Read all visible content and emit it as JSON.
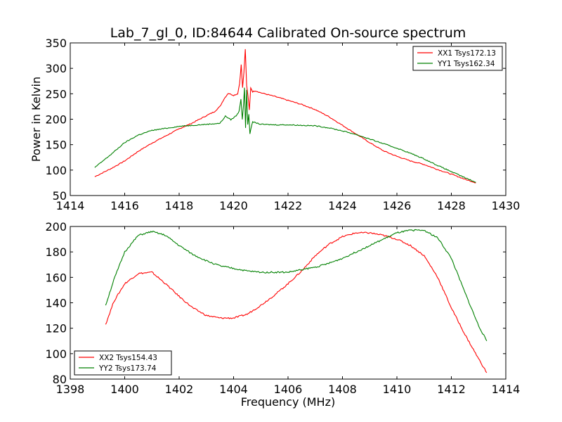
{
  "title": "Lab_7_gl_0, ID:84644 Calibrated On-source spectrum",
  "chart_data": [
    {
      "type": "line",
      "ylabel": "Power in Kelvin",
      "xlabel": "",
      "xlim": [
        1414,
        1430
      ],
      "ylim": [
        50,
        350
      ],
      "xticks": [
        1414,
        1416,
        1418,
        1420,
        1422,
        1424,
        1426,
        1428,
        1430
      ],
      "yticks": [
        50,
        100,
        150,
        200,
        250,
        300,
        350
      ],
      "legend_position": "upper right",
      "series": [
        {
          "name": "XX1 Tsys172.13",
          "color": "#ff0000",
          "x": [
            1414.9,
            1415.5,
            1416,
            1416.5,
            1417,
            1417.5,
            1418,
            1418.5,
            1419,
            1419.3,
            1419.5,
            1419.65,
            1419.8,
            1420.0,
            1420.15,
            1420.22,
            1420.28,
            1420.33,
            1420.38,
            1420.43,
            1420.48,
            1420.53,
            1420.58,
            1420.63,
            1420.7,
            1420.8,
            1421.0,
            1421.5,
            1422,
            1422.5,
            1423,
            1423.5,
            1424,
            1424.5,
            1425,
            1425.5,
            1426,
            1426.5,
            1427,
            1427.5,
            1428,
            1428.5,
            1428.9
          ],
          "y": [
            87,
            103,
            118,
            137,
            153,
            167,
            181,
            193,
            207,
            215,
            225,
            240,
            251,
            247,
            250,
            270,
            307,
            262,
            292,
            338,
            266,
            245,
            218,
            262,
            254,
            256,
            252,
            245,
            237,
            229,
            219,
            205,
            188,
            171,
            154,
            138,
            127,
            118,
            111,
            101,
            92,
            82,
            75
          ]
        },
        {
          "name": "YY1 Tsys162.34",
          "color": "#008000",
          "x": [
            1414.9,
            1415.5,
            1416,
            1416.5,
            1417,
            1417.5,
            1418,
            1418.5,
            1419,
            1419.5,
            1419.7,
            1419.9,
            1420.1,
            1420.2,
            1420.27,
            1420.32,
            1420.36,
            1420.4,
            1420.44,
            1420.48,
            1420.52,
            1420.56,
            1420.6,
            1420.7,
            1421,
            1421.5,
            1422,
            1422.5,
            1423,
            1423.5,
            1424,
            1424.5,
            1425,
            1425.5,
            1426,
            1426.5,
            1427,
            1427.5,
            1428,
            1428.5,
            1428.9
          ],
          "y": [
            105,
            131,
            154,
            169,
            178,
            182,
            186,
            188,
            190,
            192,
            206,
            199,
            207,
            215,
            240,
            200,
            225,
            262,
            182,
            258,
            190,
            210,
            172,
            195,
            190,
            189,
            189,
            188,
            187,
            183,
            177,
            170,
            161,
            152,
            143,
            133,
            122,
            109,
            97,
            85,
            76
          ]
        }
      ]
    },
    {
      "type": "line",
      "ylabel": "",
      "xlabel": "Frequency (MHz)",
      "xlim": [
        1398,
        1414
      ],
      "ylim": [
        80,
        200
      ],
      "xticks": [
        1398,
        1400,
        1402,
        1404,
        1406,
        1408,
        1410,
        1412,
        1414
      ],
      "yticks": [
        80,
        100,
        120,
        140,
        160,
        180,
        200
      ],
      "legend_position": "lower left",
      "series": [
        {
          "name": "XX2 Tsys154.43",
          "color": "#ff0000",
          "x": [
            1399.3,
            1399.6,
            1400.0,
            1400.5,
            1401.0,
            1401.5,
            1402.0,
            1402.5,
            1403.0,
            1403.5,
            1404.0,
            1404.5,
            1405.0,
            1405.5,
            1406.0,
            1406.5,
            1407.0,
            1407.5,
            1408.0,
            1408.5,
            1409.0,
            1409.5,
            1410.0,
            1410.5,
            1411.0,
            1411.5,
            1412.0,
            1412.5,
            1413.0,
            1413.3
          ],
          "y": [
            123,
            141,
            155,
            163,
            164,
            155,
            145,
            136,
            130,
            128,
            128,
            131,
            138,
            146,
            155,
            165,
            177,
            186,
            192,
            195,
            195,
            193,
            190,
            185,
            177,
            160,
            136,
            115,
            96,
            85
          ]
        },
        {
          "name": "YY2 Tsys173.74",
          "color": "#008000",
          "x": [
            1399.3,
            1399.6,
            1400.0,
            1400.5,
            1401.0,
            1401.5,
            1402.0,
            1402.5,
            1403.0,
            1403.5,
            1404.0,
            1404.5,
            1405.0,
            1405.5,
            1406.0,
            1406.5,
            1407.0,
            1407.5,
            1408.0,
            1408.5,
            1409.0,
            1409.5,
            1410.0,
            1410.5,
            1411.0,
            1411.5,
            1412.0,
            1412.5,
            1413.0,
            1413.3
          ],
          "y": [
            138,
            158,
            180,
            193,
            196,
            193,
            185,
            178,
            173,
            169,
            167,
            165,
            164,
            164,
            164,
            166,
            168,
            171,
            175,
            180,
            185,
            190,
            195,
            197,
            197,
            191,
            175,
            148,
            122,
            110
          ]
        }
      ]
    }
  ]
}
